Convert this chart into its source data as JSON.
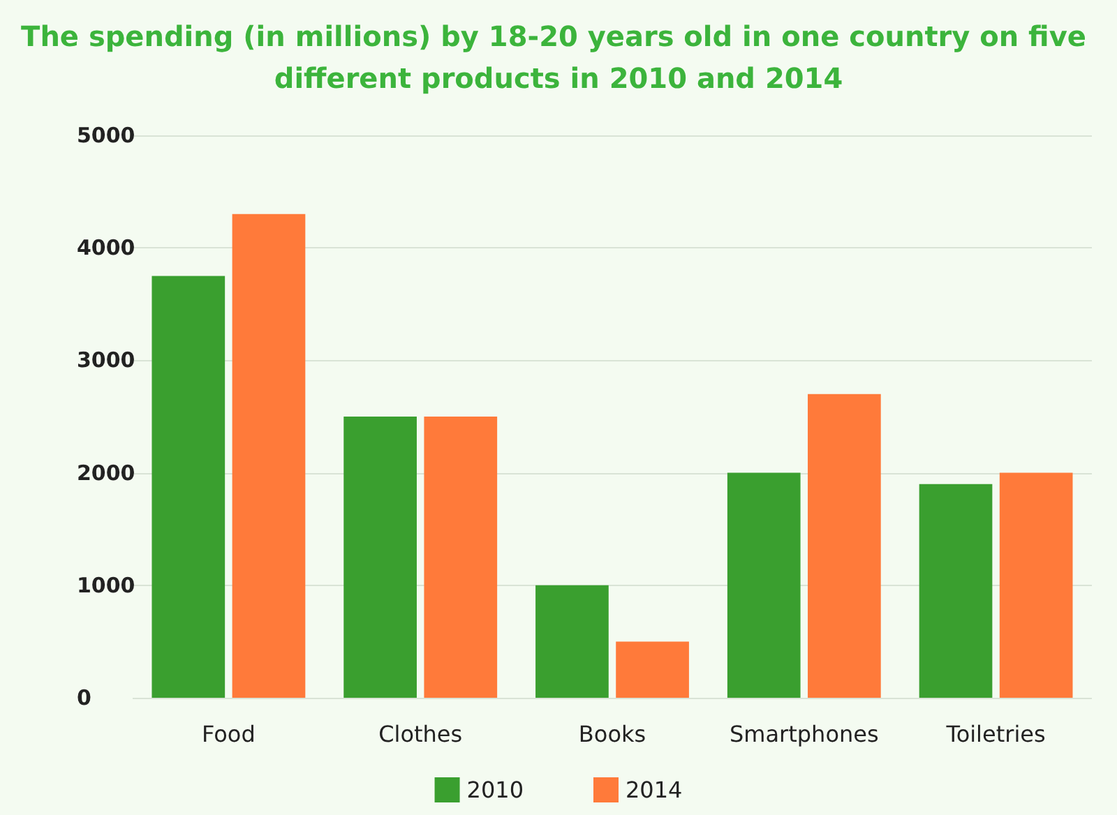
{
  "chart_data": {
    "type": "bar",
    "title": "The spending (in millions) by 18-20 years old in one country on five different products in 2010 and 2014",
    "categories": [
      "Food",
      "Clothes",
      "Books",
      "Smartphones",
      "Toiletries"
    ],
    "series": [
      {
        "name": "2010",
        "color": "#3a9f2f",
        "values": [
          3750,
          2500,
          1000,
          2000,
          1900
        ]
      },
      {
        "name": "2014",
        "color": "#ff7a3a",
        "values": [
          4300,
          2500,
          500,
          2700,
          2000
        ]
      }
    ],
    "ylim": [
      0,
      5000
    ],
    "yticks": [
      0,
      1000,
      2000,
      3000,
      4000,
      5000
    ],
    "grid": "y",
    "legend": "bottom"
  }
}
